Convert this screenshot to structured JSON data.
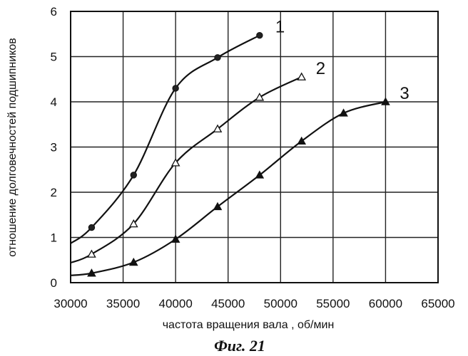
{
  "chart_data": {
    "type": "line",
    "xlabel": "частота вращения вала , об/мин",
    "ylabel": "отношение долговечностей подшипников",
    "caption": "Фиг. 21",
    "xlim": [
      30000,
      65000
    ],
    "ylim": [
      0,
      6
    ],
    "xticks": [
      30000,
      35000,
      40000,
      45000,
      50000,
      55000,
      60000,
      65000
    ],
    "yticks": [
      0,
      1,
      2,
      3,
      4,
      5,
      6
    ],
    "grid": true,
    "legend": "none",
    "series": [
      {
        "name": "1",
        "marker": "circle",
        "points": [
          [
            32000,
            1.22
          ],
          [
            36000,
            2.38
          ],
          [
            40000,
            4.3
          ],
          [
            44000,
            4.98
          ],
          [
            48000,
            5.47
          ]
        ]
      },
      {
        "name": "2",
        "marker": "triangle-open",
        "points": [
          [
            32000,
            0.63
          ],
          [
            36000,
            1.3
          ],
          [
            40000,
            2.65
          ],
          [
            44000,
            3.4
          ],
          [
            48000,
            4.1
          ],
          [
            52000,
            4.55
          ]
        ]
      },
      {
        "name": "3",
        "marker": "triangle-filled",
        "points": [
          [
            32000,
            0.21
          ],
          [
            36000,
            0.45
          ],
          [
            40000,
            0.96
          ],
          [
            44000,
            1.68
          ],
          [
            48000,
            2.38
          ],
          [
            52000,
            3.13
          ],
          [
            56000,
            3.75
          ],
          [
            60000,
            4.0
          ]
        ]
      }
    ]
  }
}
